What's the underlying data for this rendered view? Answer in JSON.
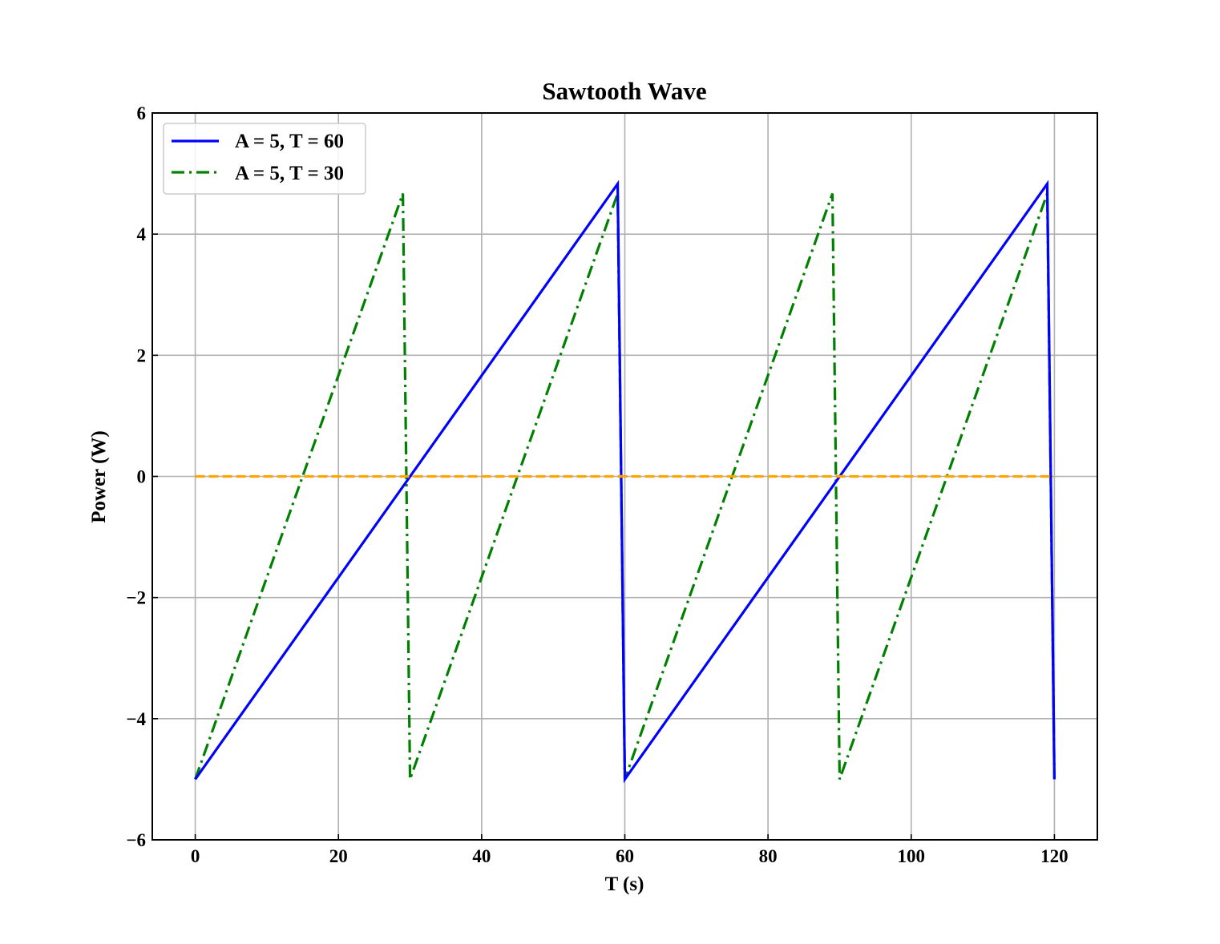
{
  "chart_data": {
    "type": "line",
    "title": "Sawtooth Wave",
    "xlabel": "T (s)",
    "ylabel": "Power (W)",
    "xlim": [
      -6,
      126
    ],
    "ylim": [
      -6,
      6
    ],
    "xticks": [
      0,
      20,
      40,
      60,
      80,
      100,
      120
    ],
    "xtick_labels": [
      "0",
      "20",
      "40",
      "60",
      "80",
      "100",
      "120"
    ],
    "yticks": [
      -6,
      -4,
      -2,
      0,
      2,
      4,
      6
    ],
    "ytick_labels": [
      "−6",
      "−4",
      "−2",
      "0",
      "2",
      "4",
      "6"
    ],
    "grid": true,
    "legend_position": "upper-left",
    "series": [
      {
        "name": "A = 5, T = 60",
        "color": "#0000ff",
        "style": "solid",
        "x": [
          0,
          59,
          60,
          119,
          120
        ],
        "y": [
          -5,
          4.83,
          -5,
          4.83,
          -5
        ]
      },
      {
        "name": "A = 5, T = 30",
        "color": "#008000",
        "style": "dashdot",
        "x": [
          0,
          29,
          30,
          59,
          60,
          89,
          90,
          119,
          120
        ],
        "y": [
          -5,
          4.67,
          -5,
          4.67,
          -5,
          4.67,
          -5,
          4.67,
          -5
        ]
      },
      {
        "color": "#ffa500",
        "style": "dashed",
        "x": [
          0,
          120
        ],
        "y": [
          0,
          0
        ]
      }
    ]
  }
}
